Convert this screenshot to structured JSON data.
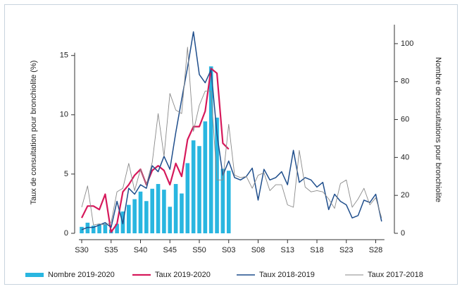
{
  "chart_data": {
    "type": "combo",
    "ylabel": "Taux de consultation pour bronchiolite (%)",
    "y2label": "Nombre de consultations pour bronchiolite",
    "categories": [
      "S30",
      null,
      null,
      null,
      null,
      "S35",
      null,
      null,
      null,
      null,
      "S40",
      null,
      null,
      null,
      null,
      "S45",
      null,
      null,
      null,
      null,
      "S50",
      null,
      null,
      null,
      null,
      "S03",
      null,
      null,
      null,
      null,
      "S08",
      null,
      null,
      null,
      null,
      "S13",
      null,
      null,
      null,
      null,
      "S18",
      null,
      null,
      null,
      null,
      "S23",
      null,
      null,
      null,
      null,
      "S28",
      null
    ],
    "ylim": [
      0,
      17.6
    ],
    "yticks": [
      0,
      5,
      10,
      15
    ],
    "y2lim": [
      0,
      110
    ],
    "y2ticks": [
      0,
      20,
      40,
      60,
      80,
      100
    ],
    "series": [
      {
        "name": "Nombre 2019-2020",
        "type": "bar",
        "axis": "y2",
        "color": "#29b6e0",
        "values": [
          3.4,
          5.6,
          4,
          4.8,
          5,
          2,
          5,
          11.5,
          15,
          18,
          22,
          17,
          23.5,
          26,
          23,
          14,
          26,
          21,
          37,
          49,
          46,
          59,
          88,
          61,
          34,
          33,
          null,
          null,
          null,
          null,
          null,
          null,
          null,
          null,
          null,
          null,
          null,
          null,
          null,
          null,
          null,
          null,
          null,
          null,
          null,
          null,
          null,
          null,
          null,
          null,
          null,
          null
        ]
      },
      {
        "name": "Taux 2019-2020",
        "type": "line",
        "color": "#d6195b",
        "line_width": 2.2,
        "values": [
          1.3,
          2.3,
          2.3,
          2.0,
          3.3,
          0.1,
          0.8,
          3.5,
          4.1,
          4.9,
          5.4,
          4.1,
          5.3,
          5.7,
          5.3,
          4.1,
          5.9,
          4.8,
          7.9,
          9.0,
          9.0,
          10.3,
          13.9,
          13.5,
          7.6,
          7.1,
          null,
          null,
          null,
          null,
          null,
          null,
          null,
          null,
          null,
          null,
          null,
          null,
          null,
          null,
          null,
          null,
          null,
          null,
          null,
          null,
          null,
          null,
          null,
          null,
          null,
          null
        ]
      },
      {
        "name": "Taux 2018-2019",
        "type": "line",
        "color": "#1f4e8c",
        "line_width": 1.5,
        "values": [
          0.3,
          0.5,
          0.5,
          0.7,
          0.9,
          0.5,
          2.7,
          0.8,
          3.8,
          3.3,
          4.1,
          3.8,
          5.7,
          5.2,
          6.5,
          5.4,
          8.5,
          11.3,
          14,
          17,
          13.4,
          12.7,
          13.8,
          8.4,
          4.9,
          6.1,
          4.7,
          4.5,
          4.8,
          5.5,
          2.8,
          5.4,
          4.5,
          4.7,
          5.2,
          4.1,
          7.0,
          4.3,
          4.7,
          4.5,
          3.9,
          4.3,
          2.0,
          3.3,
          2.7,
          2.4,
          1.3,
          1.5,
          2.8,
          2.6,
          3.3,
          1.0
        ]
      },
      {
        "name": "Taux 2017-2018",
        "type": "line",
        "color": "#8a8a8a",
        "line_width": 0.9,
        "values": [
          2.2,
          4.0,
          0.7,
          0.8,
          0.7,
          0.9,
          3.5,
          3.8,
          5.9,
          3.6,
          5.4,
          4.1,
          6.0,
          10.1,
          6.5,
          11.8,
          10.4,
          10.1,
          15.7,
          8.6,
          10.8,
          12,
          12,
          4.5,
          4.5,
          9.2,
          4.9,
          4.7,
          4.8,
          3.8,
          4.9,
          5.1,
          3.6,
          4.1,
          4.1,
          2.4,
          2.2,
          7.0,
          3.9,
          3.5,
          3.6,
          3.5,
          2.9,
          2.1,
          4.2,
          4.5,
          2.2,
          2.9,
          3.8,
          2.4,
          3.0,
          1.3
        ]
      }
    ]
  }
}
